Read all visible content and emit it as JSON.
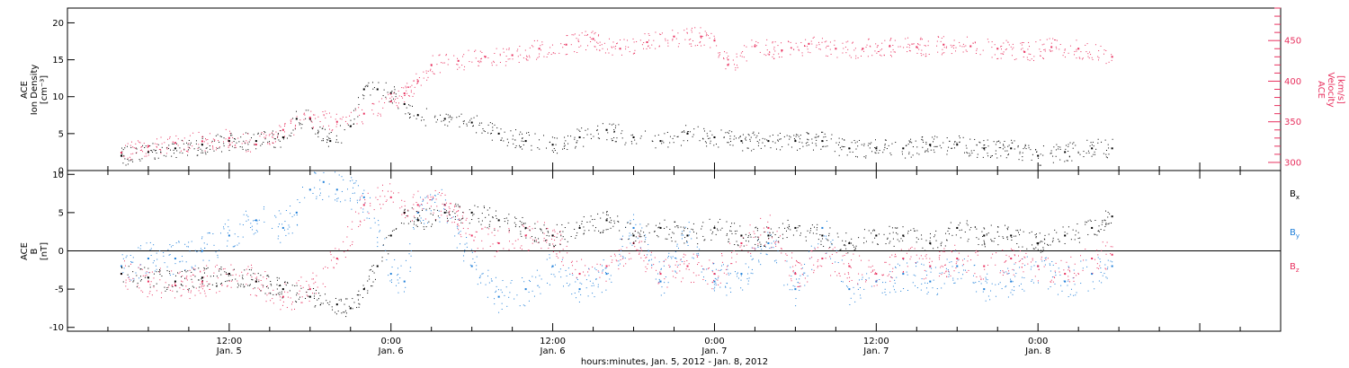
{
  "chart_data": [
    {
      "type": "scatter",
      "title": "",
      "x_range": [
        "2012-01-05T00:00",
        "2012-01-08T18:00"
      ],
      "ylabel_lines": [
        "ACE",
        "Ion Density",
        "[cm⁻³]"
      ],
      "ylim": [
        0,
        22
      ],
      "yticks": [
        0,
        5,
        10,
        15,
        20
      ],
      "y2label_lines": [
        "ACE",
        "Velocity",
        "[km/s]"
      ],
      "y2lim": [
        290,
        490
      ],
      "y2ticks": [
        300,
        350,
        400,
        450
      ],
      "grid": false,
      "series": [
        {
          "color": "#000000",
          "axis": "left",
          "x": [
            "2012-01-05T04:00",
            "2012-01-05T06:00",
            "2012-01-05T08:00",
            "2012-01-05T10:00",
            "2012-01-05T12:00",
            "2012-01-05T14:00",
            "2012-01-05T16:00",
            "2012-01-05T17:00",
            "2012-01-05T18:00",
            "2012-01-05T19:30",
            "2012-01-05T21:00",
            "2012-01-05T22:00",
            "2012-01-05T23:00",
            "2012-01-06T00:00",
            "2012-01-06T01:00",
            "2012-01-06T02:00",
            "2012-01-06T04:00",
            "2012-01-06T06:00",
            "2012-01-06T08:00",
            "2012-01-06T10:00",
            "2012-01-06T12:00",
            "2012-01-06T14:00",
            "2012-01-06T16:00",
            "2012-01-06T18:00",
            "2012-01-06T20:00",
            "2012-01-06T22:00",
            "2012-01-07T00:00",
            "2012-01-07T02:00",
            "2012-01-07T04:00",
            "2012-01-07T06:00",
            "2012-01-07T08:00",
            "2012-01-07T10:00",
            "2012-01-07T12:00",
            "2012-01-07T14:00",
            "2012-01-07T16:00",
            "2012-01-07T18:00",
            "2012-01-07T20:00",
            "2012-01-07T22:00",
            "2012-01-08T00:00",
            "2012-01-08T02:00",
            "2012-01-08T04:00",
            "2012-01-08T05:30"
          ],
          "y": [
            2,
            2.5,
            3,
            3.5,
            4,
            4,
            4.5,
            7,
            7,
            4,
            6,
            11,
            11,
            10.5,
            9,
            7.5,
            7,
            6.5,
            5,
            4,
            3.5,
            4.5,
            5.5,
            4.5,
            4,
            5,
            4.5,
            4,
            4,
            4,
            4,
            3,
            3,
            3,
            3.5,
            3.5,
            3,
            3,
            2,
            2.5,
            3,
            3
          ]
        },
        {
          "color": "#e8315f",
          "axis": "right",
          "x": [
            "2012-01-05T04:00",
            "2012-01-05T06:00",
            "2012-01-05T08:00",
            "2012-01-05T10:00",
            "2012-01-05T12:00",
            "2012-01-05T14:00",
            "2012-01-05T16:00",
            "2012-01-05T18:00",
            "2012-01-05T20:00",
            "2012-01-05T22:00",
            "2012-01-06T00:00",
            "2012-01-06T01:00",
            "2012-01-06T02:00",
            "2012-01-06T03:00",
            "2012-01-06T05:00",
            "2012-01-06T07:00",
            "2012-01-06T09:00",
            "2012-01-06T11:00",
            "2012-01-06T13:00",
            "2012-01-06T15:00",
            "2012-01-06T17:00",
            "2012-01-06T19:00",
            "2012-01-06T21:00",
            "2012-01-06T23:00",
            "2012-01-07T00:00",
            "2012-01-07T01:00",
            "2012-01-07T03:00",
            "2012-01-07T05:00",
            "2012-01-07T07:00",
            "2012-01-07T09:00",
            "2012-01-07T11:00",
            "2012-01-07T13:00",
            "2012-01-07T15:00",
            "2012-01-07T17:00",
            "2012-01-07T19:00",
            "2012-01-07T21:00",
            "2012-01-07T23:00",
            "2012-01-08T01:00",
            "2012-01-08T03:00",
            "2012-01-08T05:30"
          ],
          "y": [
            312,
            320,
            324,
            326,
            330,
            322,
            340,
            355,
            350,
            360,
            375,
            385,
            400,
            420,
            425,
            430,
            432,
            440,
            445,
            452,
            440,
            448,
            455,
            455,
            450,
            420,
            443,
            438,
            446,
            440,
            440,
            443,
            442,
            445,
            443,
            440,
            436,
            442,
            440,
            430
          ]
        }
      ]
    },
    {
      "type": "scatter",
      "title": "",
      "x_range": [
        "2012-01-05T00:00",
        "2012-01-08T18:00"
      ],
      "xlabel": "hours:minutes, Jan.  5, 2012 - Jan.  8, 2012",
      "ylabel_lines": [
        "ACE",
        "B",
        "[nT]"
      ],
      "ylim": [
        -10.5,
        10.5
      ],
      "yticks": [
        -10,
        -5,
        0,
        5,
        10
      ],
      "grid": false,
      "zero_line": true,
      "xticks": [
        {
          "time": "2012-01-05T12:00",
          "label": "12:00",
          "sub": "Jan. 5"
        },
        {
          "time": "2012-01-06T00:00",
          "label": "0:00",
          "sub": "Jan. 6"
        },
        {
          "time": "2012-01-06T12:00",
          "label": "12:00",
          "sub": "Jan. 6"
        },
        {
          "time": "2012-01-07T00:00",
          "label": "0:00",
          "sub": "Jan. 7"
        },
        {
          "time": "2012-01-07T12:00",
          "label": "12:00",
          "sub": "Jan. 7"
        },
        {
          "time": "2012-01-08T00:00",
          "label": "0:00",
          "sub": "Jan. 8"
        }
      ],
      "series": [
        {
          "name": "Bx",
          "label_main": "B",
          "label_sub": "x",
          "color": "#000000",
          "x": [
            "2012-01-05T04:00",
            "2012-01-05T06:00",
            "2012-01-05T08:00",
            "2012-01-05T10:00",
            "2012-01-05T12:00",
            "2012-01-05T14:00",
            "2012-01-05T16:00",
            "2012-01-05T18:00",
            "2012-01-05T20:00",
            "2012-01-05T21:00",
            "2012-01-05T22:00",
            "2012-01-05T23:00",
            "2012-01-06T00:00",
            "2012-01-06T01:00",
            "2012-01-06T02:00",
            "2012-01-06T04:00",
            "2012-01-06T06:00",
            "2012-01-06T08:00",
            "2012-01-06T10:00",
            "2012-01-06T12:00",
            "2012-01-06T14:00",
            "2012-01-06T16:00",
            "2012-01-06T18:00",
            "2012-01-06T20:00",
            "2012-01-06T22:00",
            "2012-01-07T00:00",
            "2012-01-07T02:00",
            "2012-01-07T04:00",
            "2012-01-07T06:00",
            "2012-01-07T08:00",
            "2012-01-07T10:00",
            "2012-01-07T12:00",
            "2012-01-07T14:00",
            "2012-01-07T16:00",
            "2012-01-07T18:00",
            "2012-01-07T20:00",
            "2012-01-07T22:00",
            "2012-01-08T00:00",
            "2012-01-08T02:00",
            "2012-01-08T04:00",
            "2012-01-08T05:30"
          ],
          "y": [
            -3,
            -3.5,
            -4,
            -3.5,
            -3,
            -4,
            -5,
            -6,
            -7,
            -7.5,
            -5,
            -2,
            2,
            5,
            4,
            5,
            5,
            4,
            3,
            2,
            3,
            4,
            2,
            3,
            2,
            3,
            2,
            2,
            3,
            2,
            1,
            2,
            2,
            1,
            3,
            2,
            2,
            1,
            2,
            3,
            4.5
          ]
        },
        {
          "name": "By",
          "label_main": "B",
          "label_sub": "y",
          "color": "#1f7fd9",
          "x": [
            "2012-01-05T04:00",
            "2012-01-05T06:00",
            "2012-01-05T08:00",
            "2012-01-05T10:00",
            "2012-01-05T12:00",
            "2012-01-05T14:00",
            "2012-01-05T16:00",
            "2012-01-05T17:00",
            "2012-01-05T18:00",
            "2012-01-05T19:00",
            "2012-01-05T20:00",
            "2012-01-05T22:00",
            "2012-01-06T00:00",
            "2012-01-06T01:00",
            "2012-01-06T02:00",
            "2012-01-06T04:00",
            "2012-01-06T06:00",
            "2012-01-06T08:00",
            "2012-01-06T10:00",
            "2012-01-06T12:00",
            "2012-01-06T14:00",
            "2012-01-06T16:00",
            "2012-01-06T18:00",
            "2012-01-06T20:00",
            "2012-01-06T22:00",
            "2012-01-07T00:00",
            "2012-01-07T02:00",
            "2012-01-07T04:00",
            "2012-01-07T06:00",
            "2012-01-07T08:00",
            "2012-01-07T10:00",
            "2012-01-07T12:00",
            "2012-01-07T14:00",
            "2012-01-07T16:00",
            "2012-01-07T18:00",
            "2012-01-07T20:00",
            "2012-01-07T22:00",
            "2012-01-08T00:00",
            "2012-01-08T02:00",
            "2012-01-08T04:00",
            "2012-01-08T05:30"
          ],
          "y": [
            -2,
            -1,
            -1,
            0,
            2,
            4,
            3,
            5,
            8,
            9,
            8,
            7,
            -3,
            -4,
            5,
            6,
            -2,
            -6,
            -5,
            -2,
            -5,
            -3,
            3,
            -4,
            2,
            -4,
            -3,
            1,
            -5,
            3,
            -5,
            -4,
            -3,
            -4,
            -2,
            -5,
            -4,
            -2,
            -4,
            -3,
            -2
          ]
        },
        {
          "name": "Bz",
          "label_main": "B",
          "label_sub": "z",
          "color": "#e8315f",
          "x": [
            "2012-01-05T04:00",
            "2012-01-05T06:00",
            "2012-01-05T08:00",
            "2012-01-05T10:00",
            "2012-01-05T12:00",
            "2012-01-05T14:00",
            "2012-01-05T16:00",
            "2012-01-05T18:00",
            "2012-01-05T20:00",
            "2012-01-05T22:00",
            "2012-01-06T00:00",
            "2012-01-06T01:00",
            "2012-01-06T02:00",
            "2012-01-06T04:00",
            "2012-01-06T06:00",
            "2012-01-06T08:00",
            "2012-01-06T10:00",
            "2012-01-06T12:00",
            "2012-01-06T14:00",
            "2012-01-06T16:00",
            "2012-01-06T18:00",
            "2012-01-06T20:00",
            "2012-01-06T22:00",
            "2012-01-07T00:00",
            "2012-01-07T02:00",
            "2012-01-07T04:00",
            "2012-01-07T06:00",
            "2012-01-07T08:00",
            "2012-01-07T10:00",
            "2012-01-07T12:00",
            "2012-01-07T14:00",
            "2012-01-07T16:00",
            "2012-01-07T18:00",
            "2012-01-07T20:00",
            "2012-01-07T22:00",
            "2012-01-08T00:00",
            "2012-01-08T02:00",
            "2012-01-08T04:00",
            "2012-01-08T05:30"
          ],
          "y": [
            -3,
            -4,
            -4.5,
            -4,
            -3,
            -4,
            -6,
            -5,
            -1,
            6,
            7,
            5,
            6,
            6,
            2,
            1,
            2,
            2,
            -3,
            -2,
            1,
            -3,
            -2,
            -3,
            1,
            3,
            -3,
            -1,
            -2,
            -3,
            -1,
            -2,
            -1,
            -2,
            -1,
            -2,
            -3,
            -1,
            -0.5
          ]
        }
      ]
    }
  ]
}
